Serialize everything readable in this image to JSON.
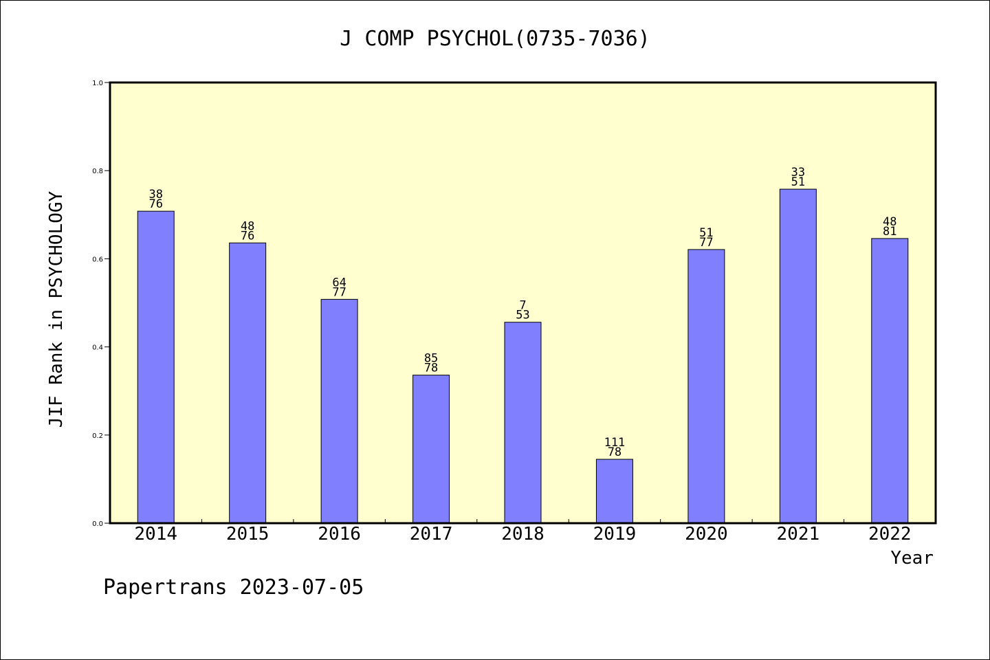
{
  "chart_data": {
    "type": "bar",
    "title": "J COMP PSYCHOL(0735-7036)",
    "xlabel": "Year",
    "ylabel": "JIF Rank in PSYCHOLOGY",
    "ylim": [
      0.0,
      1.0
    ],
    "yticks": [
      "0.0",
      "0.2",
      "0.4",
      "0.6",
      "0.8",
      "1.0"
    ],
    "categories": [
      "2014",
      "2015",
      "2016",
      "2017",
      "2018",
      "2019",
      "2020",
      "2021",
      "2022"
    ],
    "values": [
      0.708,
      0.636,
      0.508,
      0.336,
      0.456,
      0.145,
      0.621,
      0.758,
      0.646
    ],
    "labels_top": [
      "38",
      "48",
      "64",
      "85",
      "7",
      "111",
      "51",
      "33",
      "48"
    ],
    "labels_bottom": [
      "76",
      "76",
      "77",
      "78",
      "53",
      "78",
      "77",
      "51",
      "81"
    ],
    "colors": {
      "bar": "#8080ff",
      "plot_bg": "#ffffd0"
    },
    "grid": false
  },
  "footer": {
    "credit": "Papertrans 2023-07-05"
  }
}
